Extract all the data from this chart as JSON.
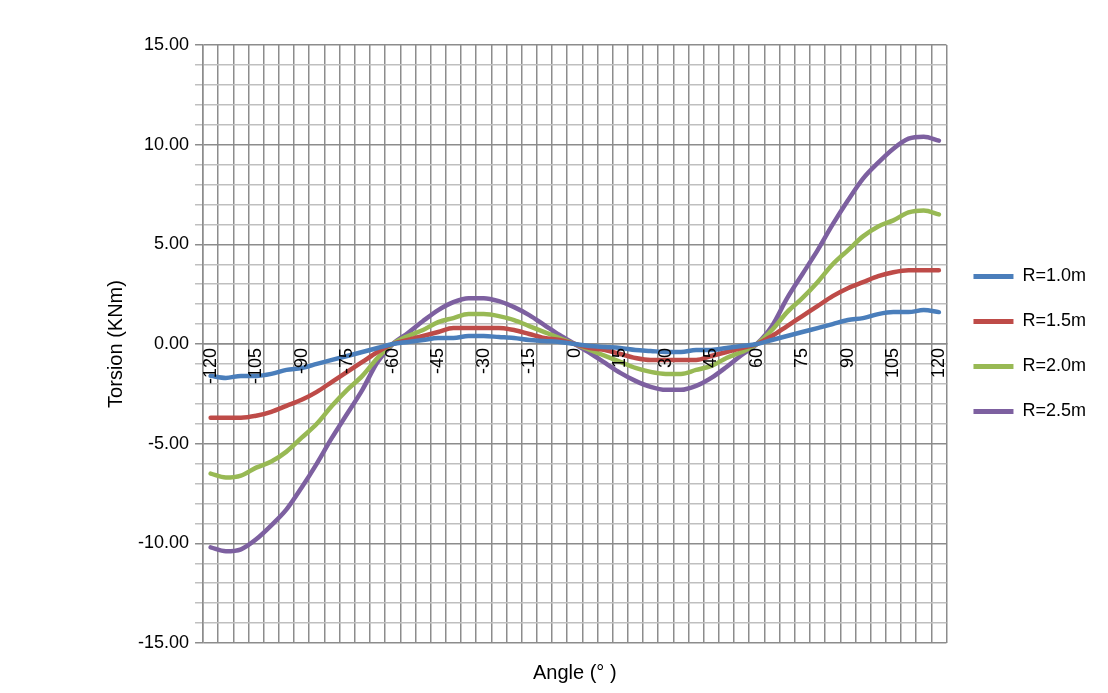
{
  "chart_data": {
    "type": "line",
    "xlabel": "Angle (° )",
    "ylabel": "Torsion (KNm)",
    "categories": [
      "-120",
      null,
      null,
      "-105",
      null,
      null,
      "-90",
      null,
      null,
      "-75",
      null,
      null,
      "-60",
      null,
      null,
      "-45",
      null,
      null,
      "-30",
      null,
      null,
      "-15",
      null,
      null,
      "0",
      null,
      null,
      "15",
      null,
      null,
      "30",
      null,
      null,
      "45",
      null,
      null,
      "60",
      null,
      null,
      "75",
      null,
      null,
      "90",
      null,
      null,
      "105",
      null,
      null,
      "120"
    ],
    "series": [
      {
        "name": "R=1.0m",
        "color": "#4a7ebb",
        "values": [
          -1.6,
          -1.7,
          -1.6,
          -1.6,
          -1.5,
          -1.3,
          -1.2,
          -1.0,
          -0.8,
          -0.6,
          -0.4,
          -0.2,
          0,
          0.1,
          0.2,
          0.3,
          0.3,
          0.4,
          0.4,
          0.35,
          0.3,
          0.2,
          0.15,
          0.1,
          0,
          -0.1,
          -0.15,
          -0.2,
          -0.3,
          -0.35,
          -0.4,
          -0.4,
          -0.3,
          -0.3,
          -0.2,
          -0.1,
          0,
          0.2,
          0.4,
          0.6,
          0.8,
          1.0,
          1.2,
          1.3,
          1.5,
          1.6,
          1.6,
          1.7,
          1.6
        ]
      },
      {
        "name": "R=1.5m",
        "color": "#be4b48",
        "values": [
          -3.7,
          -3.7,
          -3.7,
          -3.6,
          -3.4,
          -3.1,
          -2.8,
          -2.4,
          -1.9,
          -1.4,
          -0.9,
          -0.4,
          0,
          0.2,
          0.4,
          0.6,
          0.8,
          0.8,
          0.8,
          0.8,
          0.7,
          0.5,
          0.3,
          0.2,
          0,
          -0.2,
          -0.3,
          -0.5,
          -0.7,
          -0.8,
          -0.8,
          -0.8,
          -0.8,
          -0.6,
          -0.4,
          -0.2,
          0,
          0.4,
          0.9,
          1.4,
          1.9,
          2.4,
          2.8,
          3.1,
          3.4,
          3.6,
          3.7,
          3.7,
          3.7
        ]
      },
      {
        "name": "R=2.0m",
        "color": "#98b954",
        "values": [
          -6.5,
          -6.7,
          -6.6,
          -6.2,
          -5.9,
          -5.4,
          -4.7,
          -4.0,
          -3.1,
          -2.3,
          -1.6,
          -0.7,
          0,
          0.4,
          0.7,
          1.1,
          1.3,
          1.5,
          1.5,
          1.4,
          1.2,
          0.9,
          0.6,
          0.3,
          0,
          -0.3,
          -0.6,
          -0.9,
          -1.2,
          -1.4,
          -1.5,
          -1.5,
          -1.3,
          -1.1,
          -0.7,
          -0.4,
          0,
          0.7,
          1.6,
          2.3,
          3.1,
          4.0,
          4.7,
          5.4,
          5.9,
          6.2,
          6.6,
          6.7,
          6.5
        ]
      },
      {
        "name": "R=2.5m",
        "color": "#7d60a0",
        "values": [
          -10.2,
          -10.4,
          -10.3,
          -9.8,
          -9.1,
          -8.3,
          -7.2,
          -6.0,
          -4.7,
          -3.5,
          -2.3,
          -0.9,
          0,
          0.55,
          1.15,
          1.7,
          2.1,
          2.3,
          2.3,
          2.15,
          1.85,
          1.45,
          0.95,
          0.45,
          0,
          -0.45,
          -0.95,
          -1.45,
          -1.85,
          -2.15,
          -2.3,
          -2.3,
          -2.1,
          -1.7,
          -1.15,
          -0.55,
          0,
          0.9,
          2.3,
          3.5,
          4.7,
          6.0,
          7.2,
          8.3,
          9.1,
          9.8,
          10.3,
          10.4,
          10.2
        ]
      }
    ],
    "ylim": [
      -15,
      15
    ],
    "yticks": [
      {
        "value": -15,
        "label": "-15.00"
      },
      {
        "value": -14,
        "label": null
      },
      {
        "value": -13,
        "label": null
      },
      {
        "value": -12,
        "label": null
      },
      {
        "value": -11,
        "label": null
      },
      {
        "value": -10,
        "label": "-10.00"
      },
      {
        "value": -9,
        "label": null
      },
      {
        "value": -8,
        "label": null
      },
      {
        "value": -7,
        "label": null
      },
      {
        "value": -6,
        "label": null
      },
      {
        "value": -5,
        "label": "-5.00"
      },
      {
        "value": -4,
        "label": null
      },
      {
        "value": -3,
        "label": null
      },
      {
        "value": -2,
        "label": null
      },
      {
        "value": -1,
        "label": null
      },
      {
        "value": 0,
        "label": "0.00"
      },
      {
        "value": 1,
        "label": null
      },
      {
        "value": 2,
        "label": null
      },
      {
        "value": 3,
        "label": null
      },
      {
        "value": 4,
        "label": null
      },
      {
        "value": 5,
        "label": "5.00"
      },
      {
        "value": 6,
        "label": null
      },
      {
        "value": 7,
        "label": null
      },
      {
        "value": 8,
        "label": null
      },
      {
        "value": 9,
        "label": null
      },
      {
        "value": 10,
        "label": "10.00"
      },
      {
        "value": 11,
        "label": null
      },
      {
        "value": 12,
        "label": null
      },
      {
        "value": 13,
        "label": null
      },
      {
        "value": 14,
        "label": null
      },
      {
        "value": 15,
        "label": "15.00"
      }
    ],
    "grid": true,
    "legend": "right",
    "marker": "none",
    "line_style": "solid"
  }
}
